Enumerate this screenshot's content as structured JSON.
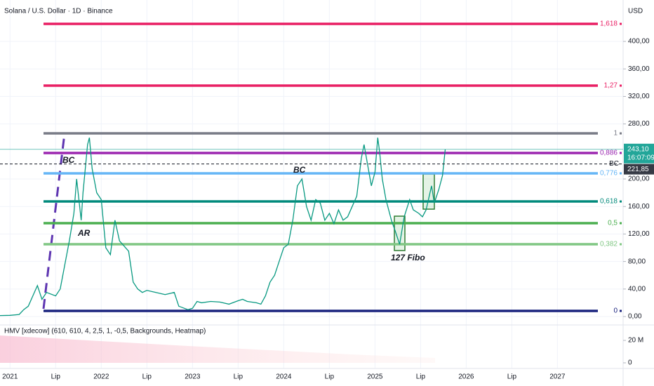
{
  "chart_data": {
    "type": "line",
    "title": "Solana / U.S. Dollar · 1D · Binance",
    "currency": "USD",
    "color": "#089981",
    "x": [
      2020.89,
      2021.0,
      2021.1,
      2021.15,
      2021.2,
      2021.25,
      2021.3,
      2021.35,
      2021.4,
      2021.5,
      2021.55,
      2021.6,
      2021.65,
      2021.7,
      2021.73,
      2021.78,
      2021.8,
      2021.85,
      2021.87,
      2021.9,
      2021.95,
      2022.0,
      2022.05,
      2022.1,
      2022.15,
      2022.2,
      2022.3,
      2022.35,
      2022.4,
      2022.45,
      2022.5,
      2022.6,
      2022.7,
      2022.8,
      2022.85,
      2022.95,
      2023.0,
      2023.05,
      2023.1,
      2023.2,
      2023.3,
      2023.4,
      2023.5,
      2023.55,
      2023.6,
      2023.7,
      2023.75,
      2023.8,
      2023.85,
      2023.9,
      2023.95,
      2024.0,
      2024.05,
      2024.1,
      2024.15,
      2024.2,
      2024.25,
      2024.3,
      2024.35,
      2024.4,
      2024.45,
      2024.5,
      2024.55,
      2024.6,
      2024.65,
      2024.7,
      2024.75,
      2024.8,
      2024.85,
      2024.88,
      2024.92,
      2024.96,
      2025.0,
      2025.03,
      2025.05,
      2025.08,
      2025.12,
      2025.18,
      2025.22,
      2025.27,
      2025.32,
      2025.38,
      2025.42,
      2025.48,
      2025.52,
      2025.56,
      2025.62,
      2025.65,
      2025.7,
      2025.74,
      2025.77
    ],
    "values": [
      1.5,
      1.8,
      3,
      10,
      15,
      30,
      45,
      25,
      35,
      30,
      40,
      75,
      110,
      150,
      200,
      140,
      180,
      250,
      260,
      215,
      180,
      170,
      100,
      90,
      140,
      110,
      95,
      50,
      40,
      35,
      38,
      35,
      32,
      35,
      15,
      10,
      12,
      22,
      20,
      22,
      21,
      18,
      23,
      25,
      22,
      20,
      18,
      30,
      50,
      60,
      80,
      100,
      105,
      140,
      190,
      200,
      160,
      140,
      170,
      165,
      140,
      150,
      135,
      155,
      140,
      145,
      160,
      175,
      230,
      250,
      220,
      190,
      210,
      260,
      240,
      200,
      170,
      140,
      125,
      105,
      145,
      170,
      155,
      150,
      145,
      155,
      190,
      165,
      185,
      205,
      243.1
    ],
    "xlim": [
      2020.89,
      2027.72
    ],
    "xticks": [
      {
        "value": 2021,
        "label": "2021"
      },
      {
        "value": 2021.5,
        "label": "Lip"
      },
      {
        "value": 2022,
        "label": "2022"
      },
      {
        "value": 2022.5,
        "label": "Lip"
      },
      {
        "value": 2023,
        "label": "2023"
      },
      {
        "value": 2023.5,
        "label": "Lip"
      },
      {
        "value": 2024,
        "label": "2024"
      },
      {
        "value": 2024.5,
        "label": "Lip"
      },
      {
        "value": 2025,
        "label": "2025"
      },
      {
        "value": 2025.5,
        "label": "Lip"
      },
      {
        "value": 2026,
        "label": "2026"
      },
      {
        "value": 2026.5,
        "label": "Lip"
      },
      {
        "value": 2027,
        "label": "2027"
      }
    ],
    "ylim": [
      -11.2,
      460.2
    ],
    "yticks": [
      {
        "value": 0,
        "label": "0,00"
      },
      {
        "value": 40,
        "label": "40,00"
      },
      {
        "value": 80,
        "label": "80,00"
      },
      {
        "value": 120,
        "label": "120,00"
      },
      {
        "value": 160,
        "label": "160,00"
      },
      {
        "value": 200,
        "label": "200,00"
      },
      {
        "value": 280,
        "label": "280,00"
      },
      {
        "value": 320,
        "label": "320,00"
      },
      {
        "value": 360,
        "label": "360,00"
      },
      {
        "value": 400,
        "label": "400,00"
      }
    ],
    "grid": true,
    "levels": [
      {
        "label": "1,618",
        "value": 425.5,
        "color": "#e91e63"
      },
      {
        "label": "1,27",
        "value": 335.7,
        "color": "#e91e63"
      },
      {
        "label": "1",
        "value": 266.3,
        "color": "#787b86"
      },
      {
        "label": "0,886",
        "value": 237.8,
        "color": "#9c27b0"
      },
      {
        "label": "0,776",
        "value": 208.2,
        "color": "#64b5f6"
      },
      {
        "label": "0,618",
        "value": 167.3,
        "color": "#00897b"
      },
      {
        "label": "0,5",
        "value": 135.7,
        "color": "#4caf50"
      },
      {
        "label": "0,382",
        "value": 105.1,
        "color": "#81c784"
      },
      {
        "label": "0",
        "value": 8.2,
        "color": "#1a237e"
      }
    ],
    "last_price": {
      "value": 243.1,
      "label": "243,10",
      "countdown": "16:07:09",
      "color": "#22a699"
    },
    "marker": {
      "value": 221.85,
      "label": "221,85",
      "name": "BC"
    },
    "annotations": [
      "BC",
      "AR",
      "BC",
      "127 Fibo"
    ],
    "indicator": {
      "title": "HMV [xdecow] (610, 610, 4, 2,5, 1, -0,5, Backgrounds, Heatmap)",
      "yticks": [
        {
          "value": 0,
          "label": "0"
        },
        {
          "value": 20000000,
          "label": "20 M"
        }
      ]
    }
  }
}
